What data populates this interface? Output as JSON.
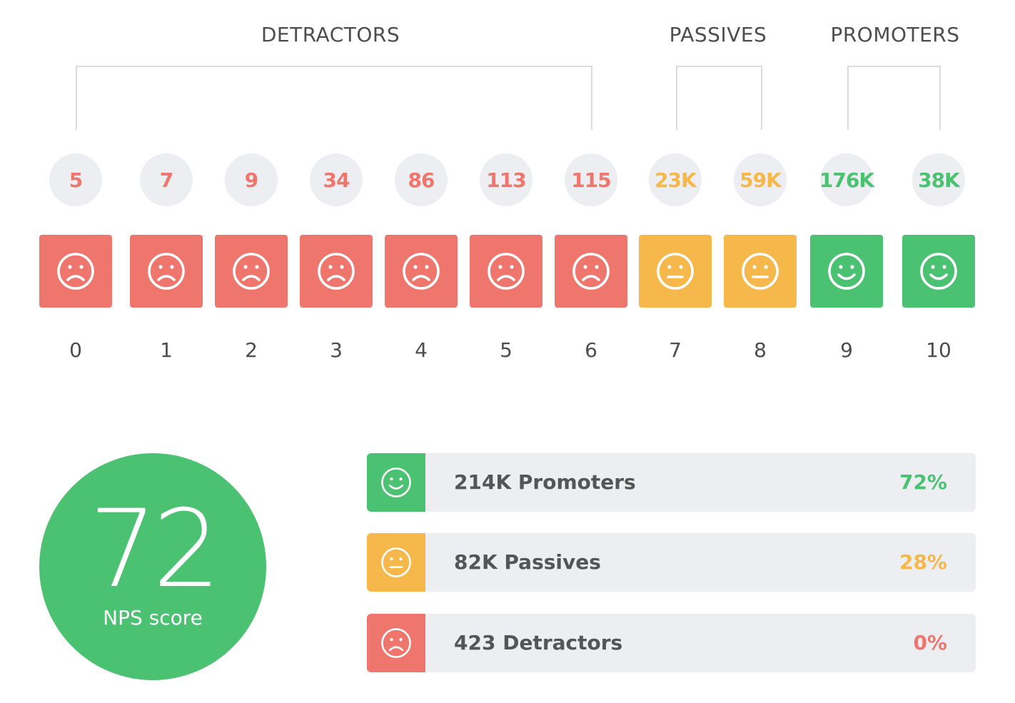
{
  "colors": {
    "detractor": "#ee766d",
    "passive": "#f6b84b",
    "promoter": "#4bc172"
  },
  "groups": [
    {
      "key": "detractor",
      "label": "DETRACTORS",
      "from": 0,
      "to": 6
    },
    {
      "key": "passive",
      "label": "PASSIVES",
      "from": 7,
      "to": 8
    },
    {
      "key": "promoter",
      "label": "PROMOTERS",
      "from": 9,
      "to": 10
    }
  ],
  "chart_data": {
    "type": "bar",
    "categories": [
      "0",
      "1",
      "2",
      "3",
      "4",
      "5",
      "6",
      "7",
      "8",
      "9",
      "10"
    ],
    "count_labels": [
      "5",
      "7",
      "9",
      "34",
      "86",
      "113",
      "115",
      "23K",
      "59K",
      "176K",
      "38K"
    ],
    "sentiments": [
      "detractor",
      "detractor",
      "detractor",
      "detractor",
      "detractor",
      "detractor",
      "detractor",
      "passive",
      "passive",
      "promoter",
      "promoter"
    ],
    "icons": [
      "sad-face-icon",
      "sad-face-icon",
      "sad-face-icon",
      "sad-face-icon",
      "sad-face-icon",
      "sad-face-icon",
      "sad-face-icon",
      "neutral-face-icon",
      "neutral-face-icon",
      "happy-face-icon",
      "happy-face-icon"
    ]
  },
  "nps": {
    "value": "72",
    "label": "NPS score"
  },
  "summary": [
    {
      "key": "promoter",
      "icon": "happy-face-icon",
      "label": "214K Promoters",
      "percent": "72%"
    },
    {
      "key": "passive",
      "icon": "neutral-face-icon",
      "label": "82K Passives",
      "percent": "28%"
    },
    {
      "key": "detractor",
      "icon": "sad-face-icon",
      "label": "423 Detractors",
      "percent": "0%"
    }
  ]
}
